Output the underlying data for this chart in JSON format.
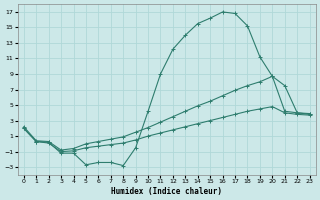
{
  "xlabel": "Humidex (Indice chaleur)",
  "bg_color": "#cce8e8",
  "line_color": "#2e7d6e",
  "grid_color": "#b0d8d8",
  "xlim": [
    -0.5,
    23.5
  ],
  "ylim": [
    -4,
    18
  ],
  "xticks": [
    0,
    1,
    2,
    3,
    4,
    5,
    6,
    7,
    8,
    9,
    10,
    11,
    12,
    13,
    14,
    15,
    16,
    17,
    18,
    19,
    20,
    21,
    22,
    23
  ],
  "yticks": [
    -3,
    -1,
    1,
    3,
    5,
    7,
    9,
    11,
    13,
    15,
    17
  ],
  "line1_x": [
    0,
    1,
    2,
    3,
    4,
    5,
    6,
    7,
    8,
    9,
    10,
    11,
    12,
    13,
    14,
    15,
    16,
    17,
    18,
    19,
    20,
    21,
    22,
    23
  ],
  "line1_y": [
    2.0,
    0.3,
    0.2,
    -1.2,
    -1.2,
    -2.7,
    -2.4,
    -2.4,
    -2.8,
    -0.5,
    4.2,
    9.0,
    12.2,
    14.0,
    15.5,
    16.2,
    17.0,
    16.8,
    15.2,
    11.2,
    8.7,
    7.5,
    4.0,
    3.8
  ],
  "line2_x": [
    0,
    1,
    2,
    3,
    4,
    5,
    6,
    7,
    8,
    9,
    10,
    11,
    12,
    13,
    14,
    15,
    16,
    17,
    18,
    19,
    20,
    21,
    22,
    23
  ],
  "line2_y": [
    2.2,
    0.4,
    0.3,
    -0.8,
    -0.6,
    0.0,
    0.3,
    0.6,
    0.9,
    1.5,
    2.1,
    2.8,
    3.5,
    4.2,
    4.9,
    5.5,
    6.2,
    6.9,
    7.5,
    8.0,
    8.7,
    4.2,
    4.0,
    3.9
  ],
  "line3_x": [
    0,
    1,
    2,
    3,
    4,
    5,
    6,
    7,
    8,
    9,
    10,
    11,
    12,
    13,
    14,
    15,
    16,
    17,
    18,
    19,
    20,
    21,
    22,
    23
  ],
  "line3_y": [
    2.0,
    0.3,
    0.1,
    -1.0,
    -0.9,
    -0.5,
    -0.3,
    -0.1,
    0.1,
    0.5,
    1.0,
    1.4,
    1.8,
    2.2,
    2.6,
    3.0,
    3.4,
    3.8,
    4.2,
    4.5,
    4.8,
    4.0,
    3.8,
    3.7
  ]
}
